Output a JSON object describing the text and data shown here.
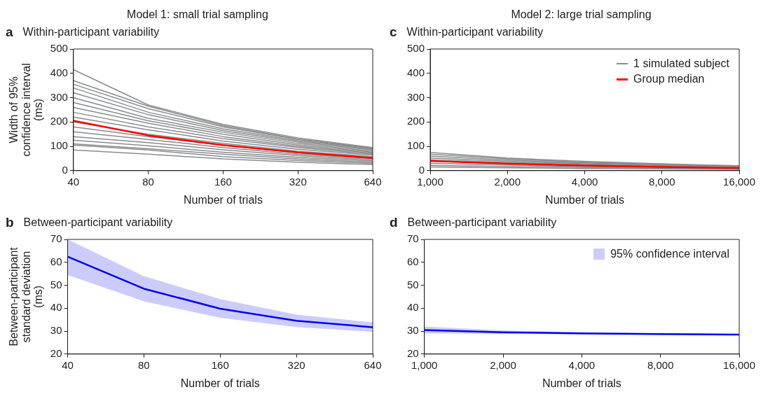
{
  "chart_data": [
    {
      "type": "line",
      "subtitle": "Model 1: small trial sampling",
      "title": "Within-participant variability",
      "annotations": [
        "a"
      ],
      "xlabel": "Number of trials",
      "ylabel": "Width of 95%\nconfidence interval\n(ms)",
      "log": "x",
      "x": [
        40,
        80,
        160,
        320,
        640
      ],
      "xlim": [
        40,
        640
      ],
      "xticks": [
        40,
        80,
        160,
        320,
        640
      ],
      "ylim": [
        0,
        500
      ],
      "yticks": [
        0,
        100,
        200,
        300,
        400,
        500
      ],
      "grid": false,
      "legend": false,
      "marker": "none",
      "series": [
        {
          "color": "#8a8c8e",
          "values": [
            415,
            270,
            190,
            135,
            95
          ]
        },
        {
          "color": "#8a8c8e",
          "values": [
            370,
            265,
            185,
            130,
            92
          ]
        },
        {
          "color": "#8a8c8e",
          "values": [
            355,
            255,
            180,
            128,
            90
          ]
        },
        {
          "color": "#8a8c8e",
          "values": [
            340,
            240,
            172,
            123,
            88
          ]
        },
        {
          "color": "#8a8c8e",
          "values": [
            320,
            230,
            165,
            118,
            85
          ]
        },
        {
          "color": "#8a8c8e",
          "values": [
            300,
            215,
            158,
            112,
            80
          ]
        },
        {
          "color": "#8a8c8e",
          "values": [
            280,
            205,
            150,
            106,
            76
          ]
        },
        {
          "color": "#8a8c8e",
          "values": [
            260,
            195,
            140,
            100,
            72
          ]
        },
        {
          "color": "#8a8c8e",
          "values": [
            240,
            180,
            132,
            95,
            68
          ]
        },
        {
          "color": "#8a8c8e",
          "values": [
            220,
            168,
            122,
            88,
            64
          ]
        },
        {
          "color": "#8a8c8e",
          "values": [
            200,
            150,
            112,
            80,
            58
          ]
        },
        {
          "color": "#8a8c8e",
          "values": [
            180,
            140,
            104,
            74,
            54
          ]
        },
        {
          "color": "#8a8c8e",
          "values": [
            160,
            128,
            95,
            68,
            50
          ]
        },
        {
          "color": "#8a8c8e",
          "values": [
            140,
            115,
            86,
            62,
            45
          ]
        },
        {
          "color": "#8a8c8e",
          "values": [
            125,
            102,
            76,
            55,
            40
          ]
        },
        {
          "color": "#8a8c8e",
          "values": [
            110,
            90,
            68,
            48,
            35
          ]
        },
        {
          "color": "#8a8c8e",
          "values": [
            105,
            85,
            58,
            42,
            30
          ]
        },
        {
          "color": "#8a8c8e",
          "values": [
            85,
            68,
            48,
            35,
            25
          ]
        },
        {
          "color": "#ff0000",
          "values": [
            205,
            145,
            105,
            75,
            52
          ]
        }
      ]
    },
    {
      "type": "line",
      "subtitle": "Model 2: large trial sampling",
      "title": "Within-participant variability",
      "annotations": [
        "c"
      ],
      "xlabel": "Number of trials",
      "log": "x",
      "x": [
        1000,
        2000,
        4000,
        8000,
        16000
      ],
      "xlim": [
        1000,
        16000
      ],
      "xticks": [
        {
          "value": 1000,
          "label": "1,000"
        },
        {
          "value": 2000,
          "label": "2,000"
        },
        {
          "value": 4000,
          "label": "4,000"
        },
        {
          "value": 8000,
          "label": "8,000"
        },
        {
          "value": 16000,
          "label": "16,000"
        }
      ],
      "ylim": [
        0,
        500
      ],
      "yticks": [
        0,
        100,
        200,
        300,
        400,
        500
      ],
      "grid": false,
      "legend": "top right",
      "marker": "none",
      "series": [
        {
          "name": "1 simulated subject",
          "color": "#8a8c8e",
          "values": [
            75,
            52,
            38,
            28,
            20
          ]
        },
        {
          "color": "#8a8c8e",
          "values": [
            68,
            48,
            35,
            26,
            18
          ]
        },
        {
          "color": "#8a8c8e",
          "values": [
            60,
            43,
            32,
            24,
            17
          ]
        },
        {
          "color": "#8a8c8e",
          "values": [
            52,
            38,
            28,
            21,
            15
          ]
        },
        {
          "color": "#8a8c8e",
          "values": [
            45,
            33,
            25,
            18,
            13
          ]
        },
        {
          "color": "#8a8c8e",
          "values": [
            30,
            23,
            17,
            13,
            9
          ]
        },
        {
          "color": "#8a8c8e",
          "values": [
            22,
            17,
            13,
            10,
            7
          ]
        },
        {
          "color": "#8a8c8e",
          "values": [
            15,
            12,
            9,
            7,
            5
          ]
        },
        {
          "name": "Group median",
          "color": "#ff0000",
          "values": [
            40,
            29,
            21,
            15,
            11
          ]
        }
      ]
    },
    {
      "type": "line",
      "title": "Between-participant variability",
      "annotations": [
        "b"
      ],
      "xlabel": "Number of trials",
      "ylabel": "Between-participant\nstandard deviation\n(ms)",
      "log": "x",
      "x": [
        40,
        80,
        160,
        320,
        640
      ],
      "xlim": [
        40,
        640
      ],
      "xticks": [
        40,
        80,
        160,
        320,
        640
      ],
      "ylim": [
        20,
        70
      ],
      "yticks": [
        20,
        30,
        40,
        50,
        60,
        70
      ],
      "grid": false,
      "legend": false,
      "marker": "none",
      "series": [
        {
          "color": "#0000ee",
          "values": [
            62.5,
            48.5,
            39.8,
            34.5,
            31.7
          ],
          "lower": [
            54.5,
            43,
            35.8,
            31.8,
            29.7
          ],
          "upper": [
            70,
            54,
            44,
            37.2,
            33.8
          ]
        }
      ]
    },
    {
      "type": "line",
      "title": "Between-participant variability",
      "annotations": [
        "d"
      ],
      "xlabel": "Number of trials",
      "log": "x",
      "x": [
        1000,
        2000,
        4000,
        8000,
        16000
      ],
      "xlim": [
        1000,
        16000
      ],
      "xticks": [
        {
          "value": 1000,
          "label": "1,000"
        },
        {
          "value": 2000,
          "label": "2,000"
        },
        {
          "value": 4000,
          "label": "4,000"
        },
        {
          "value": 8000,
          "label": "8,000"
        },
        {
          "value": 16000,
          "label": "16,000"
        }
      ],
      "ylim": [
        20,
        70
      ],
      "yticks": [
        20,
        30,
        40,
        50,
        60,
        70
      ],
      "grid": false,
      "legend": "top right",
      "marker": "none",
      "series": [
        {
          "name": "95% confidence interval",
          "color": "#0000ee",
          "values": [
            30.5,
            29.5,
            29,
            28.7,
            28.5
          ],
          "lower": [
            29,
            28.8,
            28.5,
            28.4,
            28.3
          ],
          "upper": [
            32,
            30.3,
            29.5,
            29,
            28.7
          ]
        }
      ]
    }
  ]
}
